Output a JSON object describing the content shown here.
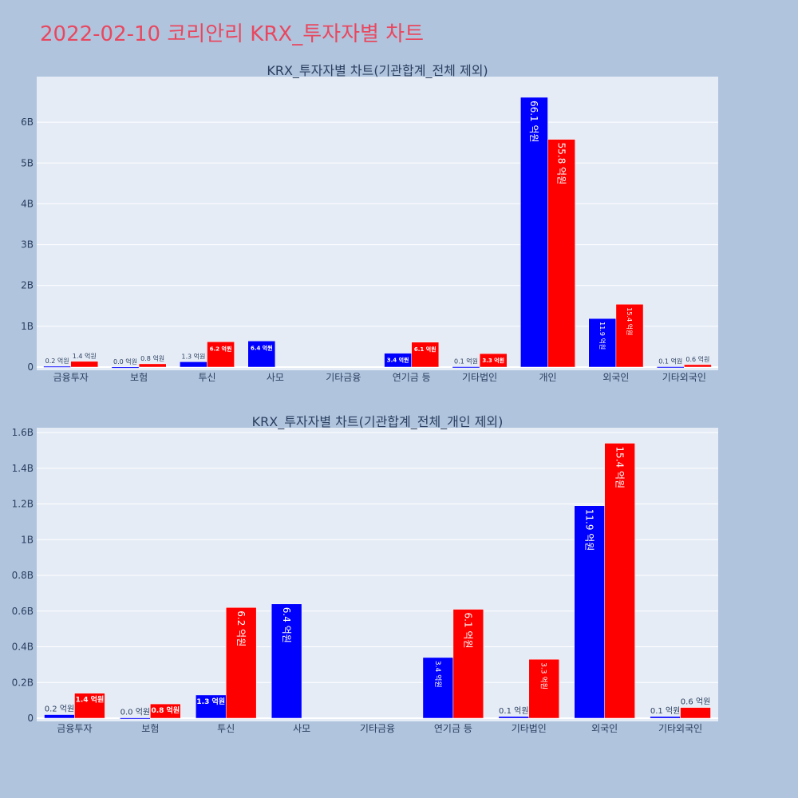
{
  "page_title": "2022-02-10 코리안리 KRX_투자자별 차트",
  "colors": {
    "buy": "#0000ff",
    "sell": "#ff0000",
    "plot_bg": "#e5ecf6",
    "page_bg": "#b0c4de",
    "title": "#e8485f"
  },
  "chart_data": [
    {
      "type": "bar",
      "title": "KRX_투자자별 차트(기관합계_전체 제외)",
      "categories": [
        "금융투자",
        "보험",
        "투신",
        "사모",
        "기타금융",
        "연기금 등",
        "기타법인",
        "개인",
        "외국인",
        "기타외국인"
      ],
      "ylim": [
        0,
        7000000000
      ],
      "yticks": [
        0,
        1000000000,
        2000000000,
        3000000000,
        4000000000,
        5000000000,
        6000000000
      ],
      "ytick_labels": [
        "0",
        "1B",
        "2B",
        "3B",
        "4B",
        "5B",
        "6B"
      ],
      "grid": true,
      "series": [
        {
          "values": [
            20000000,
            2000000,
            130000000,
            640000000,
            0,
            340000000,
            10000000,
            6610000000,
            1190000000,
            10000000
          ],
          "labels": [
            "0.2 억원",
            "0.0 억원",
            "1.3 억원",
            "6.4 억원",
            "",
            "3.4 억원",
            "0.1 억원",
            "66.1 억원",
            "11.9 억원",
            "0.1 억원"
          ]
        },
        {
          "values": [
            140000000,
            80000000,
            620000000,
            0,
            0,
            610000000,
            330000000,
            5580000000,
            1540000000,
            60000000
          ],
          "labels": [
            "1.4 억원",
            "0.8 억원",
            "6.2 억원",
            "",
            "",
            "6.1 억원",
            "3.3 억원",
            "55.8 억원",
            "15.4 억원",
            "0.6 억원"
          ]
        }
      ]
    },
    {
      "type": "bar",
      "title": "KRX_투자자별 차트(기관합계_전체_개인 제외)",
      "categories": [
        "금융투자",
        "보험",
        "투신",
        "사모",
        "기타금융",
        "연기금 등",
        "기타법인",
        "외국인",
        "기타외국인"
      ],
      "ylim": [
        0,
        1600000000
      ],
      "yticks": [
        0,
        200000000,
        400000000,
        600000000,
        800000000,
        1000000000,
        1200000000,
        1400000000,
        1600000000
      ],
      "ytick_labels": [
        "0",
        "0.2B",
        "0.4B",
        "0.6B",
        "0.8B",
        "1B",
        "1.2B",
        "1.4B",
        "1.6B"
      ],
      "grid": true,
      "series": [
        {
          "values": [
            20000000,
            2000000,
            130000000,
            640000000,
            0,
            340000000,
            10000000,
            1190000000,
            10000000
          ],
          "labels": [
            "0.2 억원",
            "0.0 억원",
            "1.3 억원",
            "6.4 억원",
            "",
            "3.4 억원",
            "0.1 억원",
            "11.9 억원",
            "0.1 억원"
          ]
        },
        {
          "values": [
            140000000,
            80000000,
            620000000,
            0,
            0,
            610000000,
            330000000,
            1540000000,
            60000000
          ],
          "labels": [
            "1.4 억원",
            "0.8 억원",
            "6.2 억원",
            "",
            "",
            "6.1 억원",
            "3.3 억원",
            "15.4 억원",
            "0.6 억원"
          ]
        }
      ]
    }
  ]
}
